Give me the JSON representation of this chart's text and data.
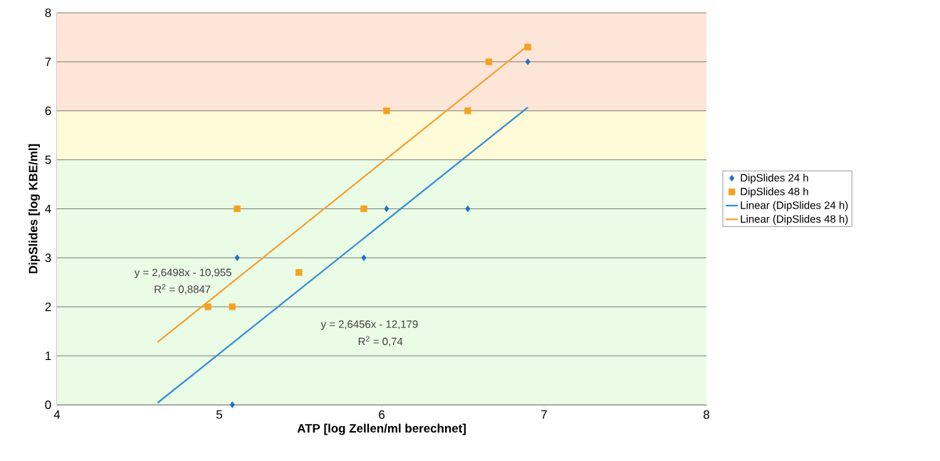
{
  "chart_data": {
    "type": "scatter",
    "xlabel": "ATP [log Zellen/ml berechnet]",
    "ylabel": "DipSlides [log KBE/ml]",
    "xlim": [
      4,
      8
    ],
    "xticks": [
      4,
      5,
      6,
      7,
      8
    ],
    "ylim": [
      0,
      8
    ],
    "yticks": [
      0,
      1,
      2,
      3,
      4,
      5,
      6,
      7,
      8
    ],
    "grid": "y",
    "legend": "right",
    "series": [
      {
        "name": "DipSlides 24 h",
        "marker": "diamond",
        "color": "#1f6fc5",
        "x": [
          5.08,
          5.11,
          5.89,
          6.03,
          6.53,
          6.9
        ],
        "values": [
          0,
          3,
          3,
          4,
          4,
          7
        ]
      },
      {
        "name": "DipSlides 48 h",
        "marker": "square",
        "color": "#f5a21f",
        "x": [
          4.93,
          5.08,
          5.11,
          5.49,
          5.89,
          6.03,
          6.53,
          6.66,
          6.9
        ],
        "values": [
          2,
          2,
          4,
          2.7,
          4,
          6,
          6,
          7,
          7.3
        ]
      },
      {
        "name": "Linear (DipSlides 24 h)",
        "type": "line",
        "marker": "none",
        "color": "#3a8fd0",
        "x": [
          4.62,
          6.9
        ],
        "values": [
          0.04,
          6.07
        ]
      },
      {
        "name": "Linear (DipSlides 48 h)",
        "type": "line",
        "marker": "none",
        "color": "#f0a43a",
        "x": [
          4.62,
          6.9
        ],
        "values": [
          1.28,
          7.33
        ]
      }
    ],
    "bands": [
      {
        "axis": "y",
        "from": 0,
        "to": 5,
        "color": "#eafbe6"
      },
      {
        "axis": "y",
        "from": 5,
        "to": 6,
        "color": "#fdfbd8"
      },
      {
        "axis": "y",
        "from": 6,
        "to": 8,
        "color": "#fde6d8"
      }
    ],
    "annotations": [
      "y = 2,6498x - 10,955",
      "R$^{2}$ = 0,8847",
      "y = 2,6456x - 12,179",
      "R$^{2}$ = 0,74"
    ]
  }
}
